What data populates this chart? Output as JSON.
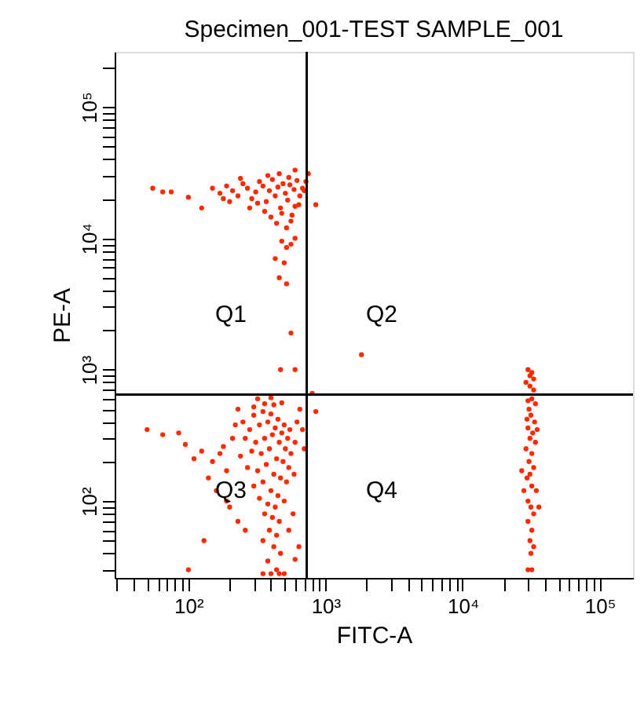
{
  "chart_data": {
    "type": "scatter",
    "title": "Specimen_001-TEST SAMPLE_001",
    "xlabel": "FITC-A",
    "ylabel": "PE-A",
    "log": "xy",
    "xlim": [
      29,
      175000
    ],
    "ylim": [
      26,
      262144
    ],
    "xticks": [
      {
        "value": 30,
        "label": null
      },
      {
        "value": 40,
        "label": null
      },
      {
        "value": 50,
        "label": null
      },
      {
        "value": 60,
        "label": null
      },
      {
        "value": 70,
        "label": null
      },
      {
        "value": 80,
        "label": null
      },
      {
        "value": 90,
        "label": null
      },
      {
        "value": 100,
        "label": "10²"
      },
      {
        "value": 200,
        "label": null
      },
      {
        "value": 300,
        "label": null
      },
      {
        "value": 400,
        "label": null
      },
      {
        "value": 500,
        "label": null
      },
      {
        "value": 600,
        "label": null
      },
      {
        "value": 700,
        "label": null
      },
      {
        "value": 800,
        "label": null
      },
      {
        "value": 900,
        "label": null
      },
      {
        "value": 1000,
        "label": "10³"
      },
      {
        "value": 2000,
        "label": null
      },
      {
        "value": 3000,
        "label": null
      },
      {
        "value": 4000,
        "label": null
      },
      {
        "value": 5000,
        "label": null
      },
      {
        "value": 6000,
        "label": null
      },
      {
        "value": 7000,
        "label": null
      },
      {
        "value": 8000,
        "label": null
      },
      {
        "value": 9000,
        "label": null
      },
      {
        "value": 10000,
        "label": "10⁴"
      },
      {
        "value": 20000,
        "label": null
      },
      {
        "value": 30000,
        "label": null
      },
      {
        "value": 40000,
        "label": null
      },
      {
        "value": 50000,
        "label": null
      },
      {
        "value": 60000,
        "label": null
      },
      {
        "value": 70000,
        "label": null
      },
      {
        "value": 80000,
        "label": null
      },
      {
        "value": 90000,
        "label": null
      },
      {
        "value": 100000,
        "label": "10⁵"
      }
    ],
    "yticks": [
      {
        "value": 30,
        "label": null
      },
      {
        "value": 40,
        "label": null
      },
      {
        "value": 50,
        "label": null
      },
      {
        "value": 60,
        "label": null
      },
      {
        "value": 70,
        "label": null
      },
      {
        "value": 80,
        "label": null
      },
      {
        "value": 90,
        "label": null
      },
      {
        "value": 100,
        "label": "10²"
      },
      {
        "value": 200,
        "label": null
      },
      {
        "value": 300,
        "label": null
      },
      {
        "value": 400,
        "label": null
      },
      {
        "value": 500,
        "label": null
      },
      {
        "value": 600,
        "label": null
      },
      {
        "value": 700,
        "label": null
      },
      {
        "value": 800,
        "label": null
      },
      {
        "value": 900,
        "label": null
      },
      {
        "value": 1000,
        "label": "10³"
      },
      {
        "value": 2000,
        "label": null
      },
      {
        "value": 3000,
        "label": null
      },
      {
        "value": 4000,
        "label": null
      },
      {
        "value": 5000,
        "label": null
      },
      {
        "value": 6000,
        "label": null
      },
      {
        "value": 7000,
        "label": null
      },
      {
        "value": 8000,
        "label": null
      },
      {
        "value": 9000,
        "label": null
      },
      {
        "value": 10000,
        "label": "10⁴"
      },
      {
        "value": 20000,
        "label": null
      },
      {
        "value": 30000,
        "label": null
      },
      {
        "value": 40000,
        "label": null
      },
      {
        "value": 50000,
        "label": null
      },
      {
        "value": 60000,
        "label": null
      },
      {
        "value": 70000,
        "label": null
      },
      {
        "value": 80000,
        "label": null
      },
      {
        "value": 90000,
        "label": null
      },
      {
        "value": 100000,
        "label": "10⁵"
      },
      {
        "value": 200000,
        "label": null
      }
    ],
    "ref_lines": [
      {
        "axis": "x",
        "value": 730,
        "color": "#000000"
      },
      {
        "axis": "y",
        "value": 645,
        "color": "#000000"
      }
    ],
    "annotations": [
      "Q1",
      "Q2",
      "Q3",
      "Q4"
    ],
    "series": [
      {
        "color": "#ff2a00",
        "x": [
          150,
          170,
          190,
          210,
          230,
          250,
          270,
          290,
          310,
          330,
          350,
          370,
          390,
          410,
          430,
          450,
          470,
          490,
          510,
          530,
          550,
          570,
          590,
          620,
          650,
          680,
          280,
          320,
          360,
          400,
          440,
          480,
          520,
          560,
          600,
          640,
          380,
          460,
          540,
          600,
          200,
          240,
          180,
          700,
          720,
          55,
          65,
          75,
          100,
          125,
          850,
          750,
          600,
          480,
          520,
          560,
          430,
          500,
          460,
          520,
          560,
          470,
          1830,
          600
        ],
        "values": [
          24000,
          22000,
          25000,
          23000,
          21000,
          26000,
          24000,
          20000,
          22500,
          27000,
          25000,
          19000,
          23000,
          28000,
          21000,
          24500,
          17000,
          26000,
          22000,
          19500,
          25500,
          15000,
          23500,
          27500,
          21000,
          24000,
          17000,
          18500,
          16000,
          14500,
          13000,
          15500,
          12000,
          13500,
          17500,
          18000,
          30000,
          31000,
          29000,
          33000,
          19000,
          28500,
          20000,
          23000,
          27000,
          24000,
          22500,
          22500,
          20500,
          17000,
          18000,
          31000,
          10000,
          9500,
          8500,
          9000,
          7000,
          6500,
          5000,
          4500,
          1900,
          1000,
          1300,
          1000
        ]
      },
      {
        "color": "#ff2a00",
        "x": [
          250,
          300,
          350,
          400,
          450,
          500,
          550,
          280,
          330,
          380,
          430,
          480,
          530,
          600,
          260,
          310,
          360,
          410,
          460,
          510,
          560,
          620,
          240,
          290,
          340,
          390,
          440,
          490,
          540,
          590,
          270,
          320,
          370,
          420,
          470,
          520,
          300,
          350,
          400,
          450,
          500,
          380,
          430,
          330,
          360,
          410,
          460,
          390,
          440,
          350,
          420,
          470,
          380,
          440,
          400,
          460,
          350,
          500,
          360,
          420,
          300,
          480,
          320,
          400,
          650,
          680,
          700,
          230,
          220,
          210,
          50,
          65,
          85,
          95,
          110,
          125,
          150,
          170,
          140,
          160,
          180,
          190,
          130,
          100,
          200,
          230,
          260,
          190,
          580,
          540,
          850,
          800,
          640,
          600
        ],
        "values": [
          400,
          450,
          480,
          460,
          420,
          380,
          350,
          350,
          380,
          400,
          360,
          330,
          300,
          280,
          300,
          280,
          300,
          320,
          280,
          250,
          230,
          400,
          220,
          240,
          230,
          250,
          210,
          200,
          180,
          160,
          180,
          170,
          190,
          160,
          150,
          140,
          130,
          140,
          120,
          110,
          100,
          95,
          90,
          105,
          80,
          75,
          70,
          60,
          55,
          50,
          45,
          40,
          35,
          30,
          28,
          28,
          28,
          28,
          550,
          540,
          520,
          560,
          600,
          610,
          500,
          350,
          250,
          500,
          380,
          300,
          350,
          320,
          330,
          270,
          210,
          240,
          200,
          230,
          150,
          120,
          260,
          170,
          50,
          30,
          90,
          70,
          60,
          100,
          80,
          60,
          480,
          660,
          45,
          36
        ]
      },
      {
        "color": "#ff2a00",
        "x": [
          29000,
          31000,
          33000,
          30000,
          32000,
          34000,
          30500,
          31500,
          29500,
          33500,
          30000,
          32500,
          31000,
          34000,
          29000,
          32000,
          30500,
          33000,
          31000,
          29500,
          32000,
          34500,
          30000,
          31500,
          33000,
          28000,
          30000,
          32000,
          31000,
          33000,
          31500,
          30000,
          32000,
          36000,
          27000,
          35000,
          31000,
          33000,
          30000,
          32000
        ],
        "values": [
          800,
          750,
          700,
          580,
          600,
          550,
          500,
          450,
          420,
          400,
          360,
          330,
          300,
          280,
          250,
          230,
          200,
          180,
          160,
          150,
          130,
          120,
          100,
          90,
          80,
          120,
          70,
          60,
          50,
          45,
          40,
          30,
          30,
          90,
          170,
          350,
          900,
          850,
          1000,
          950
        ]
      }
    ]
  }
}
